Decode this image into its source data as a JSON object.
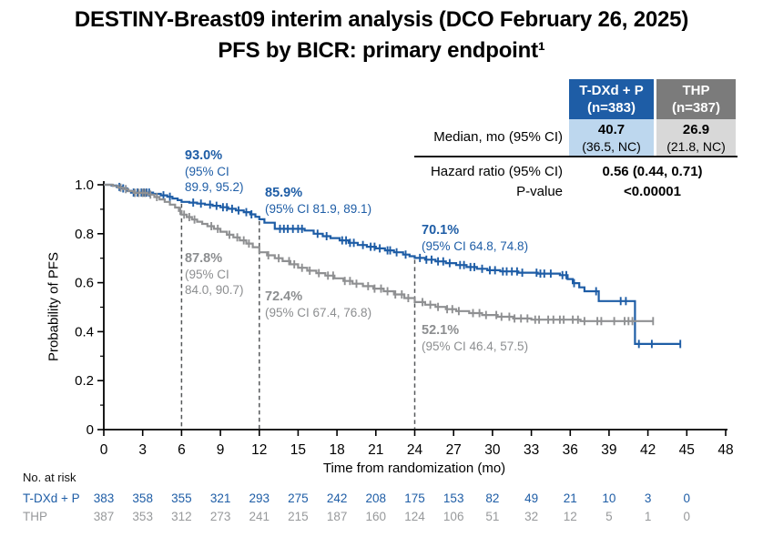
{
  "title": {
    "line1": "DESTINY-Breast09 interim analysis (DCO February 26, 2025)",
    "line2": "PFS by BICR: primary endpoint¹"
  },
  "results_table": {
    "col_tdxd_name": "T-DXd + P",
    "col_tdxd_n": "(n=383)",
    "col_thp_name": "THP",
    "col_thp_n": "(n=387)",
    "median_label": "Median, mo (95% CI)",
    "median_tdxd_value": "40.7",
    "median_tdxd_ci": "(36.5, NC)",
    "median_thp_value": "26.9",
    "median_thp_ci": "(21.8, NC)",
    "hr_label": "Hazard ratio (95% CI)",
    "hr_value": "0.56 (0.44, 0.71)",
    "pvalue_label": "P-value",
    "pvalue_value": "<0.00001"
  },
  "annotations": {
    "tdxd_6mo": {
      "pct": "93.0%",
      "ci1": "(95% CI",
      "ci2": "89.9, 95.2)"
    },
    "tdxd_12mo": {
      "pct": "85.9%",
      "ci1": "(95% CI 81.9, 89.1)"
    },
    "tdxd_24mo": {
      "pct": "70.1%",
      "ci1": "(95% CI 64.8, 74.8)"
    },
    "thp_6mo": {
      "pct": "87.8%",
      "ci1": "(95% CI",
      "ci2": "84.0, 90.7)"
    },
    "thp_12mo": {
      "pct": "72.4%",
      "ci1": "(95% CI 67.4, 76.8)"
    },
    "thp_24mo": {
      "pct": "52.1%",
      "ci1": "(95% CI 46.4, 57.5)"
    }
  },
  "chart_data": {
    "type": "line",
    "subtype": "kaplan-meier",
    "title": "",
    "xlabel": "Time from randomization (mo)",
    "ylabel": "Probability of PFS",
    "xlim": [
      0,
      48
    ],
    "ylim": [
      0,
      1.0
    ],
    "xticks": [
      0,
      3,
      6,
      9,
      12,
      15,
      18,
      21,
      24,
      27,
      30,
      33,
      36,
      39,
      42,
      45,
      48
    ],
    "yticks": [
      0,
      0.2,
      0.4,
      0.6,
      0.8,
      1.0
    ],
    "ytick_labels": [
      "0",
      "0.2",
      "0.4",
      "0.6",
      "0.8",
      "1.0"
    ],
    "y_minor_ticks": [
      0.1,
      0.3,
      0.5,
      0.7,
      0.9
    ],
    "grid": false,
    "legend": "none",
    "milestone_lines": [
      6,
      12,
      24
    ],
    "milestones": [
      {
        "t": 6,
        "tdxd": 0.93,
        "thp": 0.878
      },
      {
        "t": 12,
        "tdxd": 0.859,
        "thp": 0.724
      },
      {
        "t": 24,
        "tdxd": 0.701,
        "thp": 0.521
      }
    ],
    "dash_color": "#55585a",
    "series": [
      {
        "name": "T-DXd + P",
        "color": "#1e5da6",
        "steps": [
          [
            0,
            1.0
          ],
          [
            0.6,
            0.997
          ],
          [
            1.0,
            0.991
          ],
          [
            1.4,
            0.985
          ],
          [
            1.8,
            0.975
          ],
          [
            2.1,
            0.968
          ],
          [
            3.8,
            0.963
          ],
          [
            4.4,
            0.957
          ],
          [
            4.9,
            0.951
          ],
          [
            5.3,
            0.944
          ],
          [
            5.7,
            0.937
          ],
          [
            6.0,
            0.93
          ],
          [
            6.6,
            0.927
          ],
          [
            7.2,
            0.923
          ],
          [
            7.8,
            0.919
          ],
          [
            8.4,
            0.914
          ],
          [
            9.0,
            0.908
          ],
          [
            9.6,
            0.902
          ],
          [
            10.2,
            0.895
          ],
          [
            10.8,
            0.888
          ],
          [
            11.3,
            0.879
          ],
          [
            11.7,
            0.869
          ],
          [
            12.0,
            0.859
          ],
          [
            12.4,
            0.845
          ],
          [
            13.2,
            0.82
          ],
          [
            15.5,
            0.813
          ],
          [
            16.2,
            0.8
          ],
          [
            16.9,
            0.79
          ],
          [
            17.5,
            0.782
          ],
          [
            18.2,
            0.773
          ],
          [
            18.9,
            0.763
          ],
          [
            19.6,
            0.754
          ],
          [
            20.3,
            0.747
          ],
          [
            21.0,
            0.74
          ],
          [
            21.7,
            0.732
          ],
          [
            22.4,
            0.724
          ],
          [
            23.1,
            0.715
          ],
          [
            23.6,
            0.708
          ],
          [
            24.0,
            0.701
          ],
          [
            24.8,
            0.694
          ],
          [
            25.6,
            0.687
          ],
          [
            26.4,
            0.68
          ],
          [
            27.2,
            0.672
          ],
          [
            28.0,
            0.664
          ],
          [
            28.8,
            0.657
          ],
          [
            29.6,
            0.651
          ],
          [
            30.6,
            0.646
          ],
          [
            32.0,
            0.641
          ],
          [
            33.5,
            0.637
          ],
          [
            35.2,
            0.631
          ],
          [
            35.8,
            0.615
          ],
          [
            36.2,
            0.598
          ],
          [
            36.7,
            0.581
          ],
          [
            37.1,
            0.565
          ],
          [
            38.2,
            0.525
          ],
          [
            41.0,
            0.35
          ],
          [
            44.5,
            0.35
          ]
        ],
        "censors": [
          1.2,
          1.5,
          2.3,
          2.6,
          2.9,
          3.1,
          3.3,
          3.5,
          4.6,
          5.1,
          6.9,
          7.5,
          8.2,
          8.7,
          9.2,
          9.5,
          9.9,
          10.4,
          11.0,
          11.4,
          13.6,
          13.9,
          14.2,
          14.6,
          15.0,
          15.3,
          16.5,
          17.2,
          18.4,
          18.7,
          19.0,
          19.3,
          20.0,
          20.6,
          20.9,
          21.3,
          21.9,
          22.1,
          22.6,
          23.3,
          24.4,
          24.9,
          25.3,
          25.8,
          26.2,
          26.7,
          27.5,
          27.8,
          28.3,
          28.6,
          29.2,
          29.8,
          30.2,
          30.8,
          31.1,
          31.5,
          31.9,
          32.3,
          33.4,
          33.7,
          34.0,
          34.5,
          35.4,
          35.7,
          36.3,
          38.0,
          39.9,
          40.3,
          41.3,
          42.3,
          44.5
        ]
      },
      {
        "name": "THP",
        "color": "#8f9092",
        "steps": [
          [
            0,
            1.0
          ],
          [
            0.7,
            0.995
          ],
          [
            1.1,
            0.988
          ],
          [
            1.5,
            0.982
          ],
          [
            1.9,
            0.974
          ],
          [
            2.3,
            0.967
          ],
          [
            3.4,
            0.96
          ],
          [
            3.9,
            0.95
          ],
          [
            4.3,
            0.94
          ],
          [
            4.7,
            0.93
          ],
          [
            5.1,
            0.919
          ],
          [
            5.5,
            0.907
          ],
          [
            5.8,
            0.893
          ],
          [
            6.0,
            0.878
          ],
          [
            6.4,
            0.868
          ],
          [
            6.8,
            0.858
          ],
          [
            7.2,
            0.849
          ],
          [
            7.6,
            0.84
          ],
          [
            8.0,
            0.831
          ],
          [
            8.5,
            0.82
          ],
          [
            9.0,
            0.808
          ],
          [
            9.5,
            0.796
          ],
          [
            10.0,
            0.785
          ],
          [
            10.5,
            0.773
          ],
          [
            11.0,
            0.76
          ],
          [
            11.5,
            0.745
          ],
          [
            12.0,
            0.724
          ],
          [
            12.6,
            0.712
          ],
          [
            13.2,
            0.7
          ],
          [
            13.8,
            0.688
          ],
          [
            14.4,
            0.675
          ],
          [
            15.0,
            0.661
          ],
          [
            15.7,
            0.649
          ],
          [
            16.4,
            0.639
          ],
          [
            17.1,
            0.629
          ],
          [
            17.8,
            0.618
          ],
          [
            18.5,
            0.607
          ],
          [
            19.2,
            0.596
          ],
          [
            20.0,
            0.586
          ],
          [
            20.8,
            0.576
          ],
          [
            21.6,
            0.565
          ],
          [
            22.4,
            0.552
          ],
          [
            23.2,
            0.537
          ],
          [
            24.0,
            0.521
          ],
          [
            24.8,
            0.51
          ],
          [
            25.6,
            0.501
          ],
          [
            26.4,
            0.492
          ],
          [
            27.2,
            0.484
          ],
          [
            28.2,
            0.476
          ],
          [
            29.2,
            0.468
          ],
          [
            30.4,
            0.461
          ],
          [
            31.6,
            0.454
          ],
          [
            33.0,
            0.449
          ],
          [
            36.8,
            0.443
          ],
          [
            42.4,
            0.443
          ]
        ],
        "censors": [
          1.3,
          1.7,
          2.4,
          2.7,
          3.0,
          3.2,
          3.6,
          4.1,
          5.9,
          6.2,
          6.6,
          7.0,
          8.3,
          8.8,
          9.7,
          10.3,
          10.8,
          11.2,
          12.7,
          13.5,
          14.3,
          14.7,
          15.3,
          15.9,
          16.6,
          17.3,
          17.7,
          18.6,
          19.0,
          19.5,
          20.4,
          20.9,
          21.4,
          21.9,
          22.5,
          23.0,
          23.5,
          24.6,
          25.2,
          25.8,
          26.5,
          26.9,
          27.4,
          28.5,
          29.0,
          29.5,
          30.3,
          30.7,
          31.3,
          31.7,
          32.2,
          32.7,
          33.3,
          33.6,
          34.3,
          34.7,
          35.2,
          35.5,
          36.2,
          36.6,
          37.1,
          38.1,
          38.4,
          39.4,
          40.2,
          40.5,
          40.8,
          42.4
        ]
      }
    ]
  },
  "risk_table": {
    "title": "No. at risk",
    "times": [
      0,
      3,
      6,
      9,
      12,
      15,
      18,
      21,
      24,
      27,
      30,
      33,
      36,
      39,
      42,
      45
    ],
    "rows": [
      {
        "label": "T-DXd + P",
        "color": "#1e5da6",
        "values": [
          383,
          358,
          355,
          321,
          293,
          275,
          242,
          208,
          175,
          153,
          82,
          49,
          21,
          10,
          3,
          0
        ]
      },
      {
        "label": "THP",
        "color": "#97999b",
        "values": [
          387,
          353,
          312,
          273,
          241,
          215,
          187,
          160,
          124,
          106,
          51,
          32,
          12,
          5,
          1,
          0
        ]
      }
    ]
  }
}
